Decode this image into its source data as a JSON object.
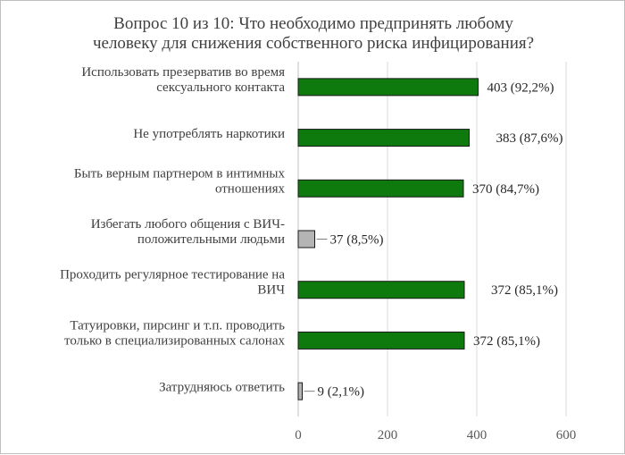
{
  "chart_data": {
    "type": "bar",
    "orientation": "horizontal",
    "title_lines": [
      "Вопрос 10 из 10: Что необходимо предпринять любому",
      "человеку  для снижения собственного риска инфицирования?"
    ],
    "categories": [
      [
        "Использовать презерватив во время",
        "сексуального контакта"
      ],
      [
        "Не употреблять наркотики"
      ],
      [
        "Быть верным партнером в интимных",
        "отношениях"
      ],
      [
        "Избегать любого общения с ВИЧ-",
        "положительными людьми"
      ],
      [
        "Проходить регулярное тестирование на",
        "ВИЧ"
      ],
      [
        "Татуировки, пирсинг и т.п. проводить",
        "только в специализированных салонах"
      ],
      [
        "Затрудняюсь ответить"
      ]
    ],
    "values": [
      403,
      383,
      370,
      37,
      372,
      372,
      9
    ],
    "data_labels": [
      "403 (92,2%)",
      "383 (87,6%)",
      "370 (84,7%)",
      "37 (8,5%)",
      "372 (85,1%)",
      "372 (85,1%)",
      "9 (2,1%)"
    ],
    "bar_colors": [
      "#0e7a0d",
      "#0e7a0d",
      "#0e7a0d",
      "#b4b4b4",
      "#0e7a0d",
      "#0e7a0d",
      "#b4b4b4"
    ],
    "xlim": [
      0,
      600
    ],
    "xticks": [
      0,
      200,
      400,
      600
    ],
    "grid": true,
    "legend": "none"
  }
}
